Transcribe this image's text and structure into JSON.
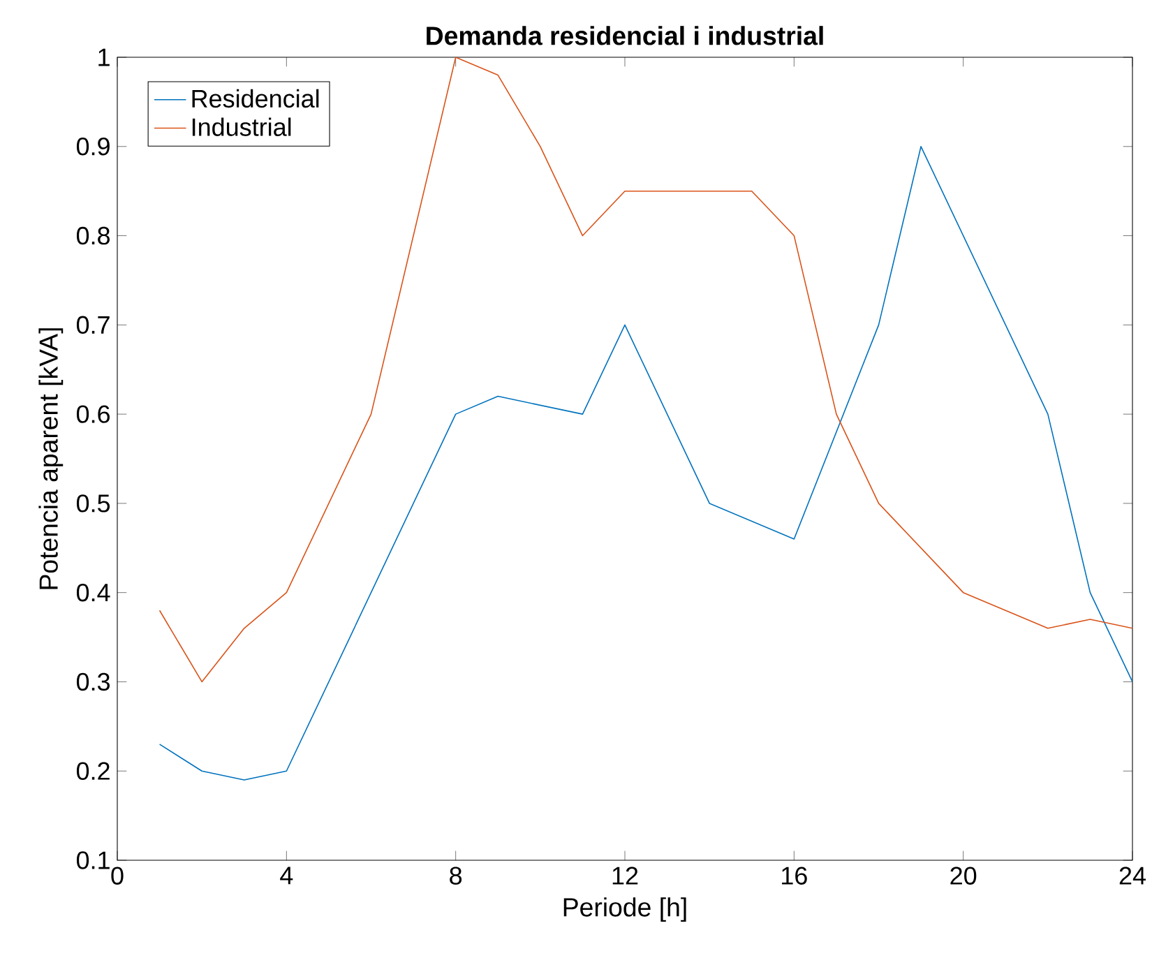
{
  "chart_data": {
    "type": "line",
    "title": "Demanda residencial i industrial",
    "xlabel": "Periode [h]",
    "ylabel": "Potencia aparent [kVA]",
    "series": [
      {
        "name": "Residencial",
        "color": "#0072bd",
        "x": [
          1,
          2,
          3,
          4,
          8,
          9,
          11,
          12,
          14,
          16,
          18,
          19,
          22,
          23,
          24
        ],
        "values": [
          0.23,
          0.2,
          0.19,
          0.2,
          0.6,
          0.62,
          0.6,
          0.7,
          0.5,
          0.46,
          0.7,
          0.9,
          0.6,
          0.4,
          0.3
        ]
      },
      {
        "name": "Industrial",
        "color": "#d95319",
        "x": [
          1,
          2,
          3,
          4,
          6,
          8,
          9,
          10,
          11,
          12,
          15,
          16,
          17,
          18,
          20,
          22,
          23,
          24
        ],
        "values": [
          0.38,
          0.3,
          0.36,
          0.4,
          0.6,
          1.0,
          0.98,
          0.9,
          0.8,
          0.85,
          0.85,
          0.8,
          0.6,
          0.5,
          0.4,
          0.36,
          0.37,
          0.36
        ]
      }
    ],
    "xlim": [
      0,
      24
    ],
    "ylim": [
      0.1,
      1
    ],
    "xticks": [
      0,
      4,
      8,
      12,
      16,
      20,
      24
    ],
    "yticks": [
      0.1,
      0.2,
      0.3,
      0.4,
      0.5,
      0.6,
      0.7,
      0.8,
      0.9,
      1
    ],
    "grid": false,
    "legend": "top left",
    "marker": "none",
    "line_style": "solid"
  }
}
